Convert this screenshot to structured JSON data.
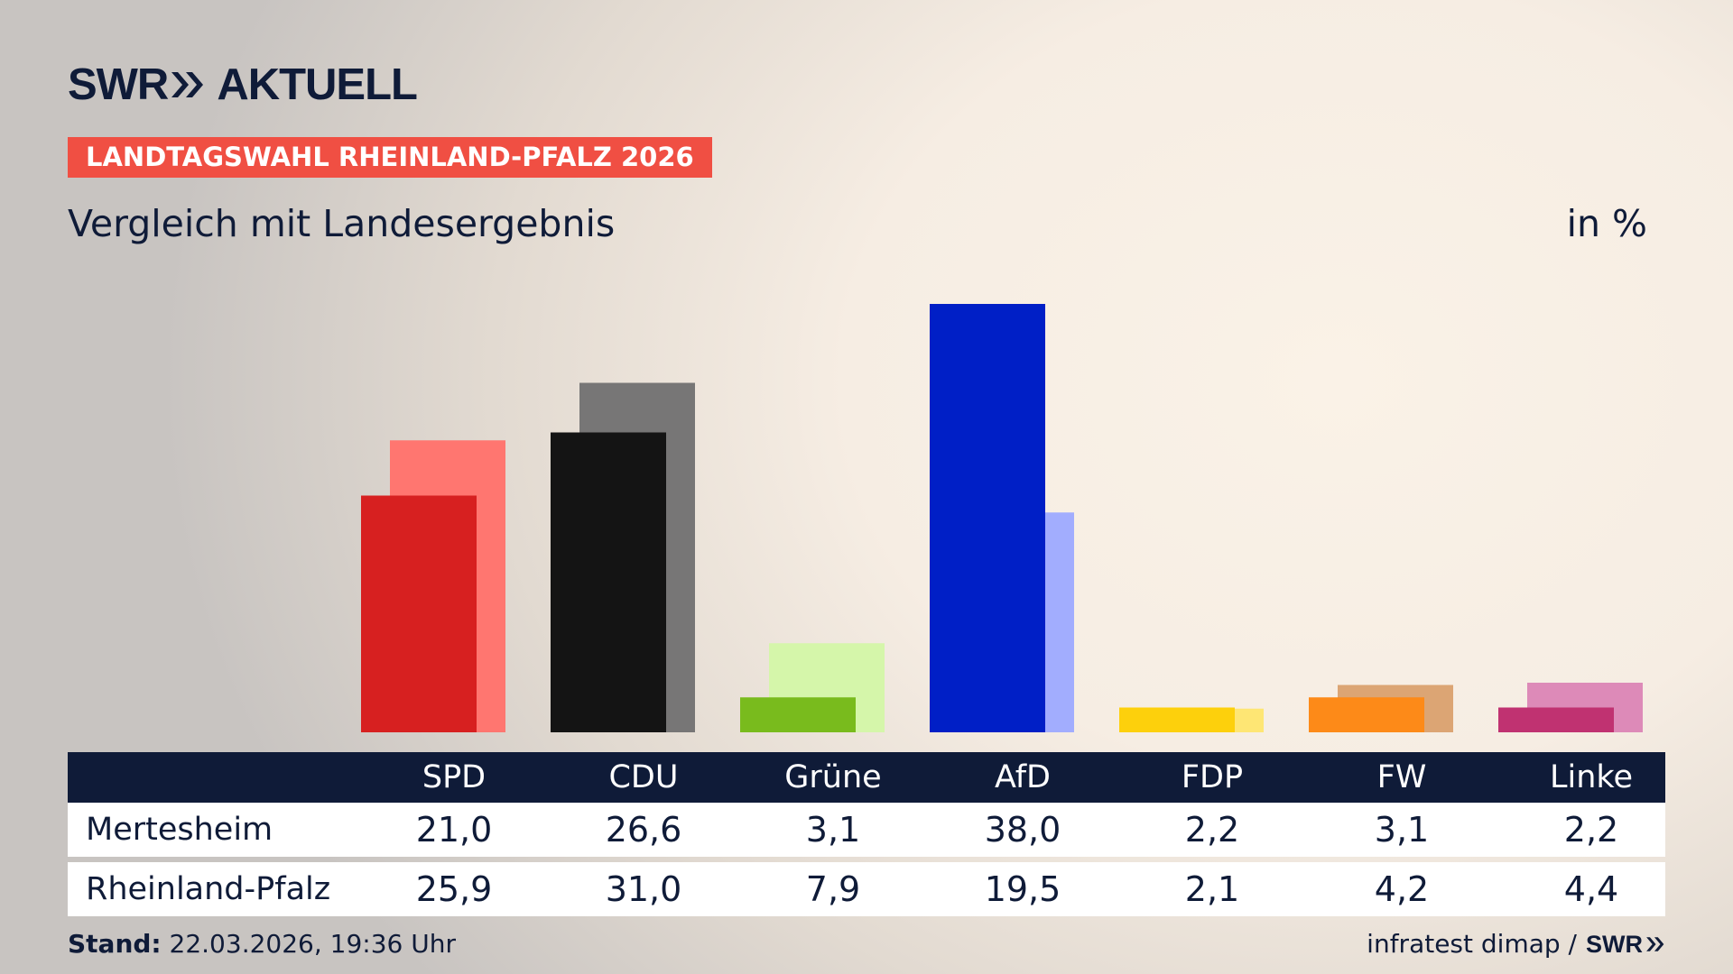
{
  "header": {
    "logo_text_left": "SWR",
    "logo_text_right": "AKTUELL",
    "logo_icon": "double-chevron-right-icon",
    "tag": "LANDTAGSWAHL RHEINLAND-PFALZ 2026",
    "subtitle": "Vergleich mit Landesergebnis",
    "unit": "in %"
  },
  "chart_data": {
    "type": "bar",
    "categories": [
      "SPD",
      "CDU",
      "Grüne",
      "AfD",
      "FDP",
      "FW",
      "Linke"
    ],
    "series": [
      {
        "name": "Mertesheim",
        "values": [
          21.0,
          26.6,
          3.1,
          38.0,
          2.2,
          3.1,
          2.2
        ]
      },
      {
        "name": "Rheinland-Pfalz",
        "values": [
          25.9,
          31.0,
          7.9,
          19.5,
          2.1,
          4.2,
          4.4
        ]
      }
    ],
    "value_labels": [
      [
        "21,0",
        "26,6",
        "3,1",
        "38,0",
        "2,2",
        "3,1",
        "2,2"
      ],
      [
        "25,9",
        "31,0",
        "7,9",
        "19,5",
        "2,1",
        "4,2",
        "4,4"
      ]
    ],
    "colors_primary": [
      "#d72020",
      "#141414",
      "#79bb1d",
      "#001fc6",
      "#fdd00c",
      "#fd8a18",
      "#c03271"
    ],
    "colors_secondary": [
      "#ff7670",
      "#777676",
      "#d5f6aa",
      "#a2adfe",
      "#fee674",
      "#dca574",
      "#dd8ab8"
    ],
    "ylim": [
      0,
      40
    ]
  },
  "footer": {
    "stand_label": "Stand:",
    "stand_value": "22.03.2026, 19:36 Uhr",
    "source": "infratest dimap /",
    "source_logo": "SWR"
  }
}
